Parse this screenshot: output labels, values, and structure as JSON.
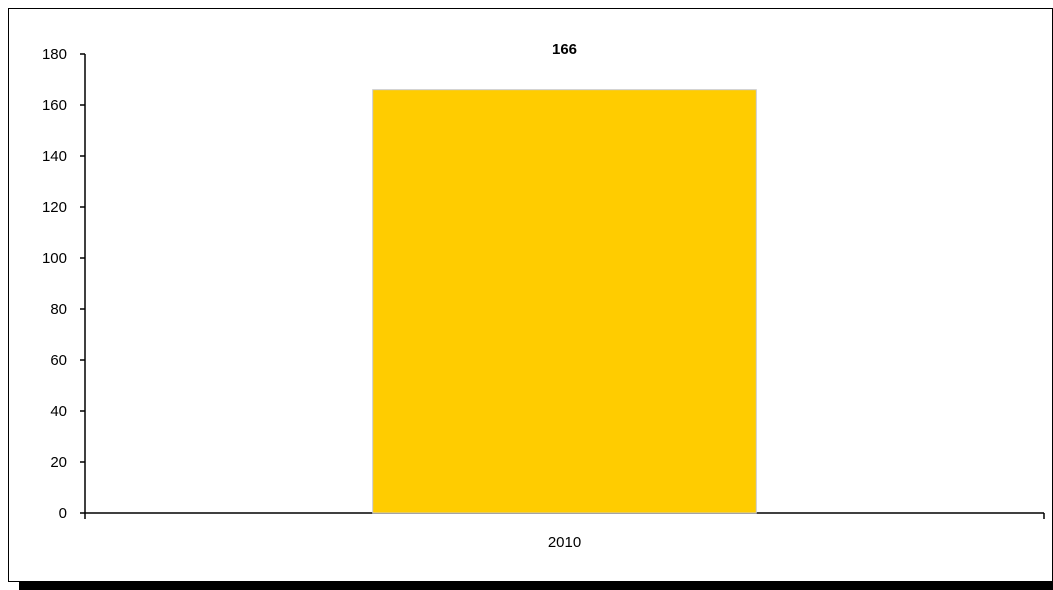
{
  "chart_data": {
    "type": "bar",
    "categories": [
      "2010"
    ],
    "values": [
      166
    ],
    "data_labels": [
      "166"
    ],
    "title": "",
    "xlabel": "",
    "ylabel": "",
    "ylim": [
      0,
      180
    ],
    "yticks": [
      0,
      20,
      40,
      60,
      80,
      100,
      120,
      140,
      160,
      180
    ],
    "grid": false,
    "legend": "none",
    "bar_color": "#FFCC00",
    "bar_edge_color": "#C8C8C8",
    "axis_color": "#000000"
  }
}
